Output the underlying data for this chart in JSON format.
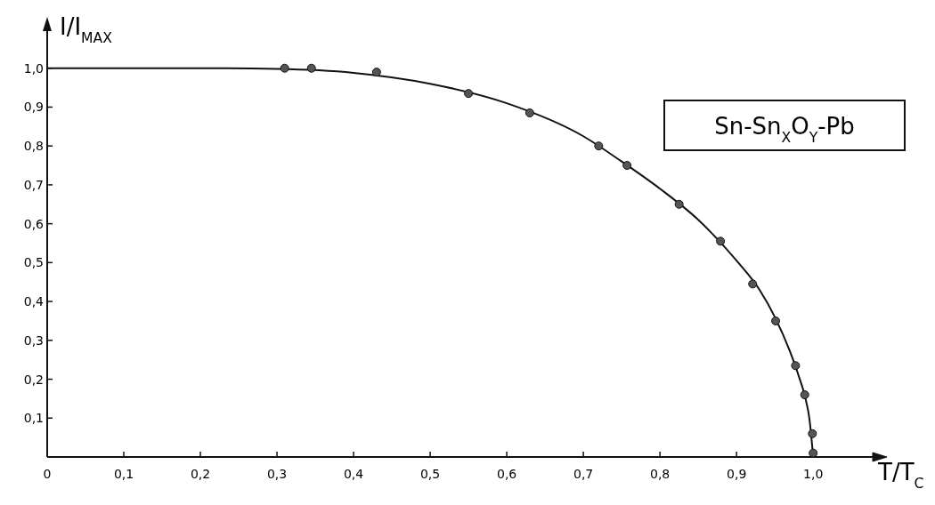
{
  "chart_data": {
    "type": "scatter",
    "xlabel": "T/T$_{C}$",
    "ylabel": "I/I$_{MAX}$",
    "annotations": [
      "Sn-Sn$_{X}$O$_{Y}$-Pb"
    ],
    "xlim": [
      0,
      1.08
    ],
    "ylim": [
      0,
      1.1
    ],
    "xticks": [
      {
        "value": 0,
        "label": "0"
      },
      {
        "value": 0.1,
        "label": "0,1"
      },
      {
        "value": 0.2,
        "label": "0,2"
      },
      {
        "value": 0.3,
        "label": "0,3"
      },
      {
        "value": 0.4,
        "label": "0,4"
      },
      {
        "value": 0.5,
        "label": "0,5"
      },
      {
        "value": 0.6,
        "label": "0,6"
      },
      {
        "value": 0.7,
        "label": "0,7"
      },
      {
        "value": 0.8,
        "label": "0,8"
      },
      {
        "value": 0.9,
        "label": "0,9"
      },
      {
        "value": 1,
        "label": "1,0"
      }
    ],
    "yticks": [
      {
        "value": 0.1,
        "label": "0,1"
      },
      {
        "value": 0.2,
        "label": "0,2"
      },
      {
        "value": 0.3,
        "label": "0,3"
      },
      {
        "value": 0.4,
        "label": "0,4"
      },
      {
        "value": 0.5,
        "label": "0,5"
      },
      {
        "value": 0.6,
        "label": "0,6"
      },
      {
        "value": 0.7,
        "label": "0,7"
      },
      {
        "value": 0.8,
        "label": "0,8"
      },
      {
        "value": 0.9,
        "label": "0,9"
      },
      {
        "value": 1,
        "label": "1,0"
      }
    ],
    "grid": false,
    "series": [
      {
        "type": "line",
        "color": "#111111",
        "line_style": "solid",
        "x": [
          0,
          0.1,
          0.2,
          0.3,
          0.4,
          0.5,
          0.6,
          0.7,
          0.75,
          0.8,
          0.85,
          0.9,
          0.93,
          0.95,
          0.97,
          0.98,
          0.99,
          0.995,
          1.0
        ],
        "values": [
          1,
          1,
          1,
          0.998,
          0.988,
          0.96,
          0.91,
          0.825,
          0.76,
          0.69,
          0.61,
          0.505,
          0.43,
          0.36,
          0.27,
          0.215,
          0.15,
          0.1,
          0
        ]
      },
      {
        "color": "#555555",
        "marker": "circle",
        "x": [
          0.31,
          0.345,
          0.43,
          0.55,
          0.63,
          0.72,
          0.757,
          0.825,
          0.879,
          0.921,
          0.951,
          0.977,
          0.989,
          0.999,
          1.0
        ],
        "values": [
          1.0,
          1.0,
          0.99,
          0.935,
          0.885,
          0.8,
          0.75,
          0.65,
          0.555,
          0.445,
          0.35,
          0.235,
          0.16,
          0.06,
          0.01
        ]
      }
    ]
  }
}
